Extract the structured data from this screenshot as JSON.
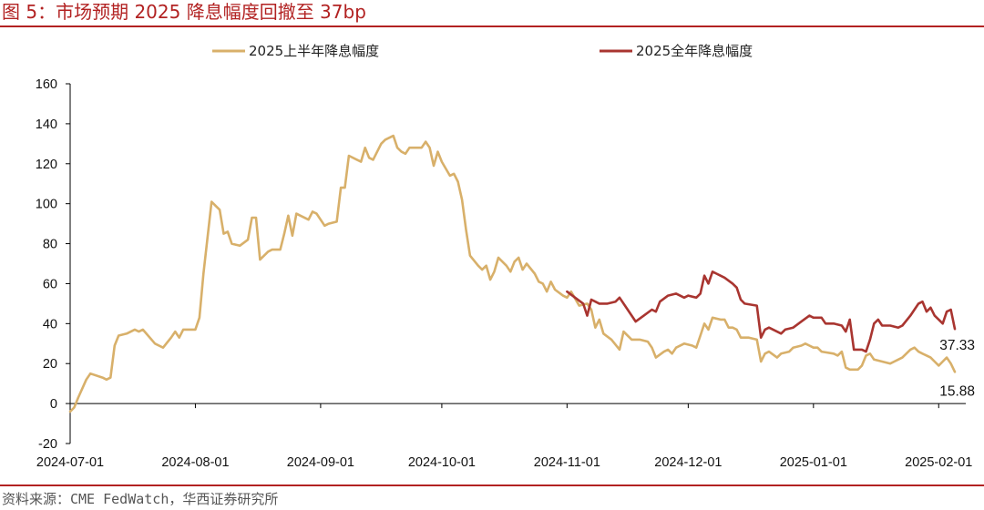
{
  "header": {
    "title": "图 5：市场预期 2025 降息幅度回撤至 37bp"
  },
  "footer": {
    "source": "资料来源：CME FedWatch，华西证券研究所"
  },
  "colors": {
    "title": "#b22222",
    "series_h1": "#d8b06a",
    "series_fy": "#a93530",
    "axis": "#000000"
  },
  "chart_data": {
    "type": "line",
    "title": "",
    "xlabel": "",
    "ylabel": "",
    "ylim": [
      -20,
      160
    ],
    "y_ticks": [
      -20,
      0,
      20,
      40,
      60,
      80,
      100,
      120,
      140,
      160
    ],
    "x_range": [
      "2024-07-01",
      "2025-02-05"
    ],
    "x_ticks": [
      "2024-07-01",
      "2024-08-01",
      "2024-09-01",
      "2024-10-01",
      "2024-11-01",
      "2024-12-01",
      "2025-01-01",
      "2025-02-01"
    ],
    "grid": false,
    "legend": "top",
    "series": [
      {
        "name": "2025上半年降息幅度",
        "color": "#d8b06a",
        "end_label": "15.88",
        "points": [
          [
            "2024-07-01",
            -4
          ],
          [
            "2024-07-02",
            -2
          ],
          [
            "2024-07-03",
            3
          ],
          [
            "2024-07-05",
            12
          ],
          [
            "2024-07-06",
            15
          ],
          [
            "2024-07-09",
            13
          ],
          [
            "2024-07-10",
            12
          ],
          [
            "2024-07-11",
            13
          ],
          [
            "2024-07-12",
            29
          ],
          [
            "2024-07-13",
            34
          ],
          [
            "2024-07-15",
            35
          ],
          [
            "2024-07-17",
            37
          ],
          [
            "2024-07-18",
            36
          ],
          [
            "2024-07-19",
            37
          ],
          [
            "2024-07-22",
            30
          ],
          [
            "2024-07-23",
            29
          ],
          [
            "2024-07-24",
            28
          ],
          [
            "2024-07-26",
            33
          ],
          [
            "2024-07-27",
            36
          ],
          [
            "2024-07-28",
            33
          ],
          [
            "2024-07-29",
            37
          ],
          [
            "2024-07-30",
            37
          ],
          [
            "2024-07-31",
            37
          ],
          [
            "2024-08-01",
            37
          ],
          [
            "2024-08-02",
            43
          ],
          [
            "2024-08-03",
            65
          ],
          [
            "2024-08-05",
            101
          ],
          [
            "2024-08-06",
            99
          ],
          [
            "2024-08-07",
            97
          ],
          [
            "2024-08-08",
            85
          ],
          [
            "2024-08-09",
            86
          ],
          [
            "2024-08-10",
            80
          ],
          [
            "2024-08-12",
            79
          ],
          [
            "2024-08-14",
            82
          ],
          [
            "2024-08-15",
            93
          ],
          [
            "2024-08-16",
            93
          ],
          [
            "2024-08-17",
            72
          ],
          [
            "2024-08-19",
            76
          ],
          [
            "2024-08-20",
            77
          ],
          [
            "2024-08-22",
            77
          ],
          [
            "2024-08-23",
            85
          ],
          [
            "2024-08-24",
            94
          ],
          [
            "2024-08-25",
            84
          ],
          [
            "2024-08-26",
            95
          ],
          [
            "2024-08-27",
            94
          ],
          [
            "2024-08-29",
            92
          ],
          [
            "2024-08-30",
            96
          ],
          [
            "2024-08-31",
            95
          ],
          [
            "2024-09-02",
            89
          ],
          [
            "2024-09-03",
            90
          ],
          [
            "2024-09-05",
            91
          ],
          [
            "2024-09-06",
            108
          ],
          [
            "2024-09-07",
            108
          ],
          [
            "2024-09-08",
            124
          ],
          [
            "2024-09-10",
            122
          ],
          [
            "2024-09-11",
            121
          ],
          [
            "2024-09-12",
            128
          ],
          [
            "2024-09-13",
            123
          ],
          [
            "2024-09-14",
            122
          ],
          [
            "2024-09-16",
            130
          ],
          [
            "2024-09-17",
            132
          ],
          [
            "2024-09-19",
            134
          ],
          [
            "2024-09-20",
            128
          ],
          [
            "2024-09-21",
            126
          ],
          [
            "2024-09-22",
            125
          ],
          [
            "2024-09-23",
            128
          ],
          [
            "2024-09-24",
            128
          ],
          [
            "2024-09-26",
            128
          ],
          [
            "2024-09-27",
            131
          ],
          [
            "2024-09-28",
            128
          ],
          [
            "2024-09-29",
            119
          ],
          [
            "2024-09-30",
            126
          ],
          [
            "2024-10-01",
            121
          ],
          [
            "2024-10-03",
            114
          ],
          [
            "2024-10-04",
            115
          ],
          [
            "2024-10-05",
            111
          ],
          [
            "2024-10-06",
            102
          ],
          [
            "2024-10-07",
            87
          ],
          [
            "2024-10-08",
            74
          ],
          [
            "2024-10-10",
            69
          ],
          [
            "2024-10-11",
            67
          ],
          [
            "2024-10-12",
            69
          ],
          [
            "2024-10-13",
            62
          ],
          [
            "2024-10-14",
            66
          ],
          [
            "2024-10-15",
            73
          ],
          [
            "2024-10-17",
            69
          ],
          [
            "2024-10-18",
            66
          ],
          [
            "2024-10-19",
            71
          ],
          [
            "2024-10-20",
            73
          ],
          [
            "2024-10-21",
            67
          ],
          [
            "2024-10-22",
            70
          ],
          [
            "2024-10-24",
            65
          ],
          [
            "2024-10-25",
            61
          ],
          [
            "2024-10-26",
            60
          ],
          [
            "2024-10-27",
            56
          ],
          [
            "2024-10-28",
            61
          ],
          [
            "2024-10-29",
            57
          ],
          [
            "2024-10-31",
            54
          ],
          [
            "2024-11-01",
            53
          ],
          [
            "2024-11-02",
            56
          ],
          [
            "2024-11-04",
            49
          ],
          [
            "2024-11-06",
            50
          ],
          [
            "2024-11-07",
            47
          ],
          [
            "2024-11-08",
            38
          ],
          [
            "2024-11-09",
            42
          ],
          [
            "2024-11-10",
            35
          ],
          [
            "2024-11-12",
            32
          ],
          [
            "2024-11-14",
            27
          ],
          [
            "2024-11-15",
            36
          ],
          [
            "2024-11-17",
            32
          ],
          [
            "2024-11-19",
            32
          ],
          [
            "2024-11-21",
            31
          ],
          [
            "2024-11-22",
            28
          ],
          [
            "2024-11-23",
            23
          ],
          [
            "2024-11-25",
            26
          ],
          [
            "2024-11-26",
            27
          ],
          [
            "2024-11-27",
            25
          ],
          [
            "2024-11-28",
            28
          ],
          [
            "2024-11-30",
            30
          ],
          [
            "2024-12-02",
            29
          ],
          [
            "2024-12-03",
            28
          ],
          [
            "2024-12-04",
            34
          ],
          [
            "2024-12-05",
            40
          ],
          [
            "2024-12-06",
            37
          ],
          [
            "2024-12-07",
            43
          ],
          [
            "2024-12-09",
            42
          ],
          [
            "2024-12-10",
            42
          ],
          [
            "2024-12-11",
            38
          ],
          [
            "2024-12-12",
            38
          ],
          [
            "2024-12-13",
            37
          ],
          [
            "2024-12-14",
            33
          ],
          [
            "2024-12-16",
            33
          ],
          [
            "2024-12-18",
            32
          ],
          [
            "2024-12-19",
            21
          ],
          [
            "2024-12-20",
            25
          ],
          [
            "2024-12-21",
            26
          ],
          [
            "2024-12-23",
            23
          ],
          [
            "2024-12-24",
            25
          ],
          [
            "2024-12-26",
            26
          ],
          [
            "2024-12-27",
            28
          ],
          [
            "2024-12-29",
            29
          ],
          [
            "2024-12-30",
            30
          ],
          [
            "2024-12-31",
            29
          ],
          [
            "2025-01-01",
            28
          ],
          [
            "2025-01-02",
            28
          ],
          [
            "2025-01-03",
            26
          ],
          [
            "2025-01-06",
            25
          ],
          [
            "2025-01-07",
            24
          ],
          [
            "2025-01-08",
            26
          ],
          [
            "2025-01-09",
            18
          ],
          [
            "2025-01-10",
            17
          ],
          [
            "2025-01-12",
            17
          ],
          [
            "2025-01-13",
            19
          ],
          [
            "2025-01-14",
            24
          ],
          [
            "2025-01-15",
            25
          ],
          [
            "2025-01-16",
            22
          ],
          [
            "2025-01-18",
            21
          ],
          [
            "2025-01-20",
            20
          ],
          [
            "2025-01-21",
            21
          ],
          [
            "2025-01-22",
            22
          ],
          [
            "2025-01-23",
            23
          ],
          [
            "2025-01-25",
            27
          ],
          [
            "2025-01-26",
            28
          ],
          [
            "2025-01-27",
            26
          ],
          [
            "2025-01-28",
            25
          ],
          [
            "2025-01-29",
            24
          ],
          [
            "2025-01-30",
            23
          ],
          [
            "2025-01-31",
            21
          ],
          [
            "2025-02-01",
            19
          ],
          [
            "2025-02-02",
            21
          ],
          [
            "2025-02-03",
            23
          ],
          [
            "2025-02-04",
            20
          ],
          [
            "2025-02-05",
            15.88
          ]
        ]
      },
      {
        "name": "2025全年降息幅度",
        "color": "#a93530",
        "end_label": "37.33",
        "points": [
          [
            "2024-11-01",
            56
          ],
          [
            "2024-11-03",
            53
          ],
          [
            "2024-11-05",
            50
          ],
          [
            "2024-11-06",
            44
          ],
          [
            "2024-11-07",
            52
          ],
          [
            "2024-11-08",
            51
          ],
          [
            "2024-11-09",
            50
          ],
          [
            "2024-11-11",
            50
          ],
          [
            "2024-11-13",
            51
          ],
          [
            "2024-11-14",
            53
          ],
          [
            "2024-11-16",
            47
          ],
          [
            "2024-11-18",
            41
          ],
          [
            "2024-11-20",
            44
          ],
          [
            "2024-11-22",
            47
          ],
          [
            "2024-11-23",
            46
          ],
          [
            "2024-11-24",
            51
          ],
          [
            "2024-11-26",
            54
          ],
          [
            "2024-11-28",
            55
          ],
          [
            "2024-11-30",
            53
          ],
          [
            "2024-12-01",
            54
          ],
          [
            "2024-12-03",
            53
          ],
          [
            "2024-12-04",
            55
          ],
          [
            "2024-12-05",
            64
          ],
          [
            "2024-12-06",
            60
          ],
          [
            "2024-12-07",
            66
          ],
          [
            "2024-12-08",
            65
          ],
          [
            "2024-12-09",
            64
          ],
          [
            "2024-12-10",
            63
          ],
          [
            "2024-12-12",
            60
          ],
          [
            "2024-12-13",
            58
          ],
          [
            "2024-12-14",
            52
          ],
          [
            "2024-12-15",
            50
          ],
          [
            "2024-12-18",
            49
          ],
          [
            "2024-12-19",
            33
          ],
          [
            "2024-12-20",
            37
          ],
          [
            "2024-12-21",
            38
          ],
          [
            "2024-12-24",
            35
          ],
          [
            "2024-12-25",
            37
          ],
          [
            "2024-12-27",
            38
          ],
          [
            "2024-12-29",
            41
          ],
          [
            "2024-12-31",
            44
          ],
          [
            "2025-01-01",
            43
          ],
          [
            "2025-01-02",
            43
          ],
          [
            "2025-01-03",
            43
          ],
          [
            "2025-01-04",
            40
          ],
          [
            "2025-01-06",
            40
          ],
          [
            "2025-01-08",
            39
          ],
          [
            "2025-01-09",
            36
          ],
          [
            "2025-01-10",
            42
          ],
          [
            "2025-01-11",
            27
          ],
          [
            "2025-01-13",
            27
          ],
          [
            "2025-01-14",
            26
          ],
          [
            "2025-01-15",
            32
          ],
          [
            "2025-01-16",
            40
          ],
          [
            "2025-01-17",
            42
          ],
          [
            "2025-01-18",
            39
          ],
          [
            "2025-01-20",
            39
          ],
          [
            "2025-01-22",
            38
          ],
          [
            "2025-01-23",
            39
          ],
          [
            "2025-01-25",
            44
          ],
          [
            "2025-01-27",
            50
          ],
          [
            "2025-01-28",
            51
          ],
          [
            "2025-01-29",
            46
          ],
          [
            "2025-01-30",
            48
          ],
          [
            "2025-01-31",
            44
          ],
          [
            "2025-02-01",
            42
          ],
          [
            "2025-02-02",
            40
          ],
          [
            "2025-02-03",
            46
          ],
          [
            "2025-02-04",
            47
          ],
          [
            "2025-02-05",
            37.33
          ]
        ]
      }
    ]
  }
}
